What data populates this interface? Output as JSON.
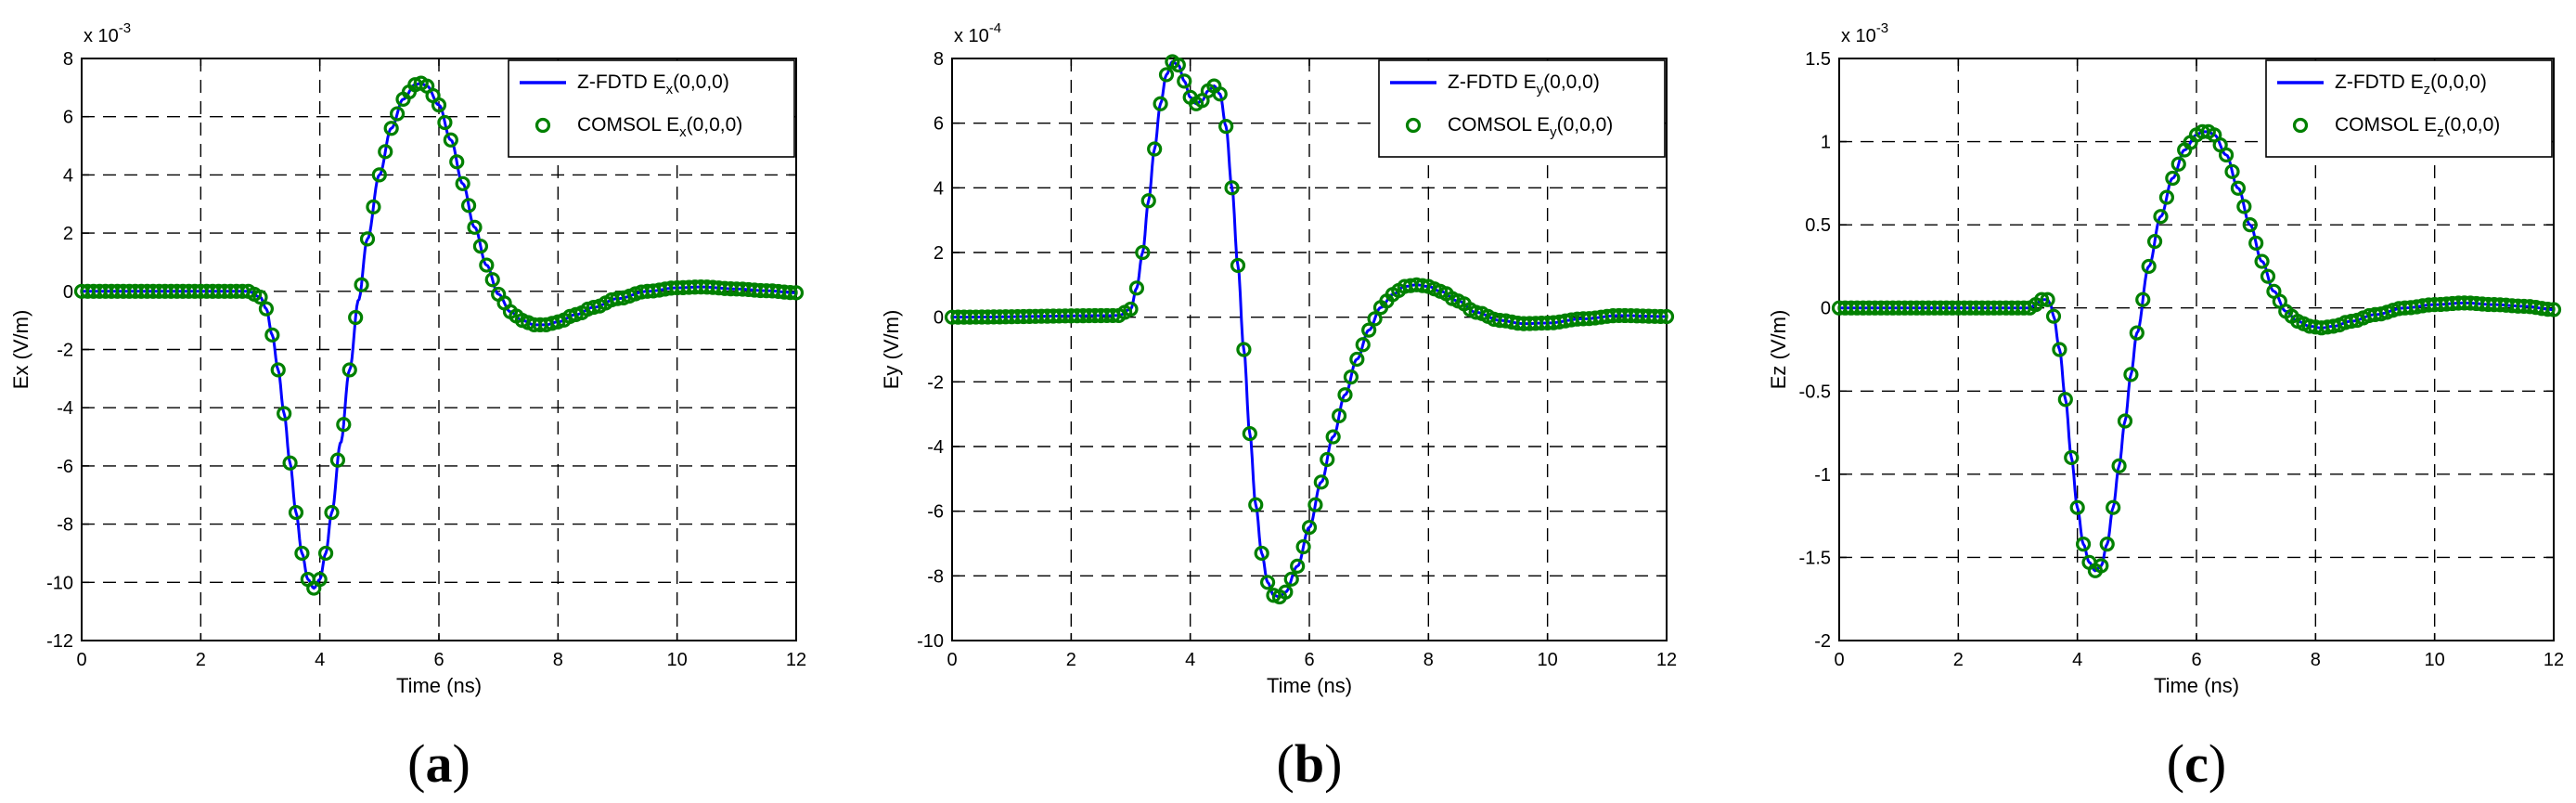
{
  "chart_data": [
    {
      "type": "line",
      "caption_letter": "a",
      "xlabel": "Time (ns)",
      "ylabel": "Ex (V/m)",
      "exponent_base": "x 10",
      "exponent_power": "-3",
      "xlim": [
        0,
        12
      ],
      "ylim": [
        -12,
        8
      ],
      "xticks": [
        "0",
        "2",
        "4",
        "6",
        "8",
        "10",
        "12"
      ],
      "yticks": [
        "-12",
        "-10",
        "-8",
        "-6",
        "-4",
        "-2",
        "0",
        "2",
        "4",
        "6",
        "8"
      ],
      "grid": true,
      "legend_position": "top-right",
      "legend": [
        {
          "prefix": "Z-FDTD E",
          "sub": "x",
          "suffix": "(0,0,0)",
          "style": "line",
          "color": "#0000ff"
        },
        {
          "prefix": "COMSOL E",
          "sub": "x",
          "suffix": "(0,0,0)",
          "style": "marker",
          "color": "#008000"
        }
      ],
      "curve_points": [
        [
          0,
          0
        ],
        [
          2.8,
          0
        ],
        [
          3.0,
          -0.2
        ],
        [
          3.1,
          -0.6
        ],
        [
          3.2,
          -1.5
        ],
        [
          3.3,
          -2.7
        ],
        [
          3.4,
          -4.2
        ],
        [
          3.5,
          -5.9
        ],
        [
          3.6,
          -7.6
        ],
        [
          3.7,
          -9.0
        ],
        [
          3.8,
          -9.9
        ],
        [
          3.9,
          -10.2
        ],
        [
          4.0,
          -9.9
        ],
        [
          4.1,
          -9.0
        ],
        [
          4.2,
          -7.6
        ],
        [
          4.35,
          -5.2
        ],
        [
          4.5,
          -2.7
        ],
        [
          4.65,
          -0.3
        ],
        [
          4.8,
          1.8
        ],
        [
          5.0,
          4.0
        ],
        [
          5.2,
          5.6
        ],
        [
          5.4,
          6.6
        ],
        [
          5.6,
          7.1
        ],
        [
          5.7,
          7.15
        ],
        [
          5.8,
          7.05
        ],
        [
          6.0,
          6.4
        ],
        [
          6.2,
          5.2
        ],
        [
          6.4,
          3.7
        ],
        [
          6.6,
          2.2
        ],
        [
          6.8,
          0.9
        ],
        [
          7.0,
          -0.1
        ],
        [
          7.2,
          -0.7
        ],
        [
          7.4,
          -1.0
        ],
        [
          7.6,
          -1.15
        ],
        [
          7.8,
          -1.15
        ],
        [
          8.0,
          -1.05
        ],
        [
          8.3,
          -0.8
        ],
        [
          8.6,
          -0.55
        ],
        [
          9.0,
          -0.25
        ],
        [
          9.5,
          0.0
        ],
        [
          10.0,
          0.12
        ],
        [
          10.4,
          0.15
        ],
        [
          11.0,
          0.08
        ],
        [
          11.5,
          0.02
        ],
        [
          12.0,
          -0.05
        ]
      ],
      "marker_step": 0.1
    },
    {
      "type": "line",
      "caption_letter": "b",
      "xlabel": "Time (ns)",
      "ylabel": "Ey (V/m)",
      "exponent_base": "x 10",
      "exponent_power": "-4",
      "xlim": [
        0,
        12
      ],
      "ylim": [
        -10,
        8
      ],
      "xticks": [
        "0",
        "2",
        "4",
        "6",
        "8",
        "10",
        "12"
      ],
      "yticks": [
        "-10",
        "-8",
        "-6",
        "-4",
        "-2",
        "0",
        "2",
        "4",
        "6",
        "8"
      ],
      "grid": true,
      "legend_position": "top-right",
      "legend": [
        {
          "prefix": "Z-FDTD E",
          "sub": "y",
          "suffix": "(0,0,0)",
          "style": "line",
          "color": "#0000ff"
        },
        {
          "prefix": "COMSOL E",
          "sub": "y",
          "suffix": "(0,0,0)",
          "style": "marker",
          "color": "#008000"
        }
      ],
      "curve_points": [
        [
          0,
          0
        ],
        [
          2.8,
          0.05
        ],
        [
          3.0,
          0.25
        ],
        [
          3.1,
          0.9
        ],
        [
          3.2,
          2.0
        ],
        [
          3.3,
          3.6
        ],
        [
          3.4,
          5.2
        ],
        [
          3.5,
          6.6
        ],
        [
          3.6,
          7.5
        ],
        [
          3.7,
          7.9
        ],
        [
          3.8,
          7.8
        ],
        [
          3.9,
          7.3
        ],
        [
          4.0,
          6.8
        ],
        [
          4.1,
          6.6
        ],
        [
          4.2,
          6.7
        ],
        [
          4.3,
          7.0
        ],
        [
          4.4,
          7.15
        ],
        [
          4.5,
          6.9
        ],
        [
          4.6,
          5.9
        ],
        [
          4.7,
          4.0
        ],
        [
          4.8,
          1.6
        ],
        [
          4.9,
          -1.0
        ],
        [
          5.0,
          -3.6
        ],
        [
          5.1,
          -5.8
        ],
        [
          5.2,
          -7.3
        ],
        [
          5.3,
          -8.2
        ],
        [
          5.4,
          -8.6
        ],
        [
          5.5,
          -8.65
        ],
        [
          5.6,
          -8.5
        ],
        [
          5.8,
          -7.7
        ],
        [
          6.0,
          -6.5
        ],
        [
          6.2,
          -5.1
        ],
        [
          6.4,
          -3.7
        ],
        [
          6.6,
          -2.4
        ],
        [
          6.8,
          -1.3
        ],
        [
          7.0,
          -0.4
        ],
        [
          7.2,
          0.3
        ],
        [
          7.4,
          0.7
        ],
        [
          7.6,
          0.95
        ],
        [
          7.8,
          1.0
        ],
        [
          8.0,
          0.95
        ],
        [
          8.2,
          0.8
        ],
        [
          8.5,
          0.5
        ],
        [
          8.8,
          0.15
        ],
        [
          9.2,
          -0.1
        ],
        [
          9.6,
          -0.2
        ],
        [
          10.0,
          -0.18
        ],
        [
          10.6,
          -0.05
        ],
        [
          11.2,
          0.05
        ],
        [
          12.0,
          0.02
        ]
      ],
      "marker_step": 0.1
    },
    {
      "type": "line",
      "caption_letter": "c",
      "xlabel": "Time (ns)",
      "ylabel": "Ez (V/m)",
      "exponent_base": "x 10",
      "exponent_power": "-3",
      "xlim": [
        0,
        12
      ],
      "ylim": [
        -2,
        1.5
      ],
      "xticks": [
        "0",
        "2",
        "4",
        "6",
        "8",
        "10",
        "12"
      ],
      "yticks": [
        "-2",
        "-1.5",
        "-1",
        "-0.5",
        "0",
        "0.5",
        "1",
        "1.5"
      ],
      "grid": true,
      "legend_position": "top-right",
      "legend": [
        {
          "prefix": "Z-FDTD E",
          "sub": "z",
          "suffix": "(0,0,0)",
          "style": "line",
          "color": "#0000ff"
        },
        {
          "prefix": "COMSOL E",
          "sub": "z",
          "suffix": "(0,0,0)",
          "style": "marker",
          "color": "#008000"
        }
      ],
      "curve_points": [
        [
          0,
          0
        ],
        [
          3.2,
          0
        ],
        [
          3.3,
          0.02
        ],
        [
          3.4,
          0.05
        ],
        [
          3.5,
          0.05
        ],
        [
          3.55,
          0.02
        ],
        [
          3.6,
          -0.05
        ],
        [
          3.7,
          -0.25
        ],
        [
          3.8,
          -0.55
        ],
        [
          3.9,
          -0.9
        ],
        [
          4.0,
          -1.2
        ],
        [
          4.1,
          -1.42
        ],
        [
          4.2,
          -1.53
        ],
        [
          4.3,
          -1.58
        ],
        [
          4.4,
          -1.55
        ],
        [
          4.5,
          -1.42
        ],
        [
          4.6,
          -1.2
        ],
        [
          4.7,
          -0.95
        ],
        [
          4.8,
          -0.68
        ],
        [
          4.9,
          -0.4
        ],
        [
          5.0,
          -0.15
        ],
        [
          5.2,
          0.25
        ],
        [
          5.4,
          0.55
        ],
        [
          5.6,
          0.78
        ],
        [
          5.8,
          0.95
        ],
        [
          6.0,
          1.04
        ],
        [
          6.1,
          1.06
        ],
        [
          6.2,
          1.06
        ],
        [
          6.3,
          1.04
        ],
        [
          6.5,
          0.92
        ],
        [
          6.7,
          0.72
        ],
        [
          6.9,
          0.5
        ],
        [
          7.1,
          0.28
        ],
        [
          7.3,
          0.1
        ],
        [
          7.5,
          -0.02
        ],
        [
          7.7,
          -0.08
        ],
        [
          7.9,
          -0.11
        ],
        [
          8.1,
          -0.12
        ],
        [
          8.3,
          -0.11
        ],
        [
          8.6,
          -0.08
        ],
        [
          9.0,
          -0.04
        ],
        [
          9.5,
          0.0
        ],
        [
          10.0,
          0.02
        ],
        [
          10.5,
          0.03
        ],
        [
          11.0,
          0.02
        ],
        [
          11.5,
          0.01
        ],
        [
          12.0,
          -0.01
        ]
      ],
      "marker_step": 0.1
    }
  ]
}
